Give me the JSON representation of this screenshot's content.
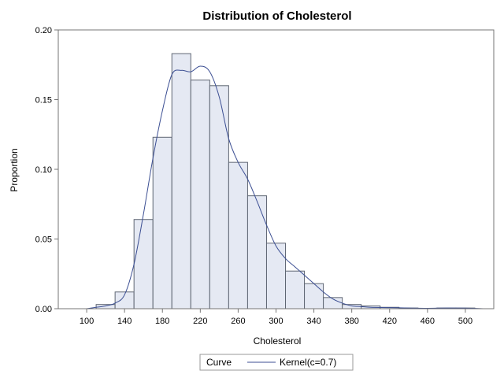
{
  "chart_data": {
    "type": "bar",
    "title": "Distribution of Cholesterol",
    "xlabel": "Cholesterol",
    "ylabel": "Proportion",
    "xlim": [
      70,
      530
    ],
    "ylim": [
      0,
      0.2
    ],
    "x_ticks": [
      100,
      140,
      180,
      220,
      260,
      300,
      340,
      380,
      420,
      460,
      500
    ],
    "y_ticks": [
      0.0,
      0.05,
      0.1,
      0.15,
      0.2
    ],
    "y_tick_labels": [
      "0.00",
      "0.05",
      "0.10",
      "0.15",
      "0.20"
    ],
    "bin_width": 20,
    "bins": [
      {
        "start": 110,
        "end": 130,
        "value": 0.003
      },
      {
        "start": 130,
        "end": 150,
        "value": 0.012
      },
      {
        "start": 150,
        "end": 170,
        "value": 0.064
      },
      {
        "start": 170,
        "end": 190,
        "value": 0.123
      },
      {
        "start": 190,
        "end": 210,
        "value": 0.183
      },
      {
        "start": 210,
        "end": 230,
        "value": 0.164
      },
      {
        "start": 230,
        "end": 250,
        "value": 0.16
      },
      {
        "start": 250,
        "end": 270,
        "value": 0.105
      },
      {
        "start": 270,
        "end": 290,
        "value": 0.081
      },
      {
        "start": 290,
        "end": 310,
        "value": 0.047
      },
      {
        "start": 310,
        "end": 330,
        "value": 0.027
      },
      {
        "start": 330,
        "end": 350,
        "value": 0.018
      },
      {
        "start": 350,
        "end": 370,
        "value": 0.008
      },
      {
        "start": 370,
        "end": 390,
        "value": 0.003
      },
      {
        "start": 390,
        "end": 410,
        "value": 0.002
      },
      {
        "start": 410,
        "end": 430,
        "value": 0.001
      },
      {
        "start": 430,
        "end": 450,
        "value": 0.0005
      },
      {
        "start": 470,
        "end": 490,
        "value": 0.0005
      },
      {
        "start": 490,
        "end": 510,
        "value": 0.0005
      }
    ],
    "kernel_curve": {
      "name": "Kernel(c=0.7)",
      "x": [
        100,
        110,
        120,
        130,
        140,
        150,
        160,
        170,
        180,
        190,
        200,
        210,
        220,
        230,
        240,
        250,
        260,
        270,
        280,
        290,
        300,
        310,
        320,
        330,
        340,
        350,
        360,
        370,
        380,
        390,
        400,
        420,
        440,
        460,
        480,
        500,
        520
      ],
      "y": [
        0.0,
        0.001,
        0.002,
        0.004,
        0.01,
        0.032,
        0.068,
        0.108,
        0.142,
        0.168,
        0.171,
        0.17,
        0.174,
        0.17,
        0.152,
        0.122,
        0.105,
        0.093,
        0.077,
        0.06,
        0.045,
        0.036,
        0.03,
        0.024,
        0.018,
        0.012,
        0.007,
        0.004,
        0.002,
        0.0015,
        0.001,
        0.0008,
        0.0005,
        0.0003,
        0.0005,
        0.0004,
        0.0
      ]
    },
    "legend": {
      "title": "Curve",
      "entries": [
        "Kernel(c=0.7)"
      ],
      "placement": "bottom"
    },
    "colors": {
      "bar_fill": "#e5e9f3",
      "bar_stroke": "#5f6673",
      "curve": "#3c4f93",
      "frame": "#767676"
    },
    "grid": false
  }
}
